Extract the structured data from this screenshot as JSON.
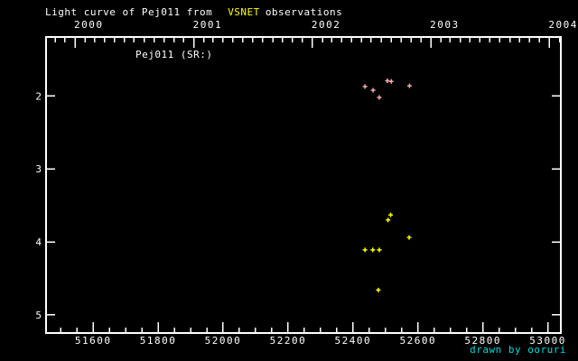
{
  "title": {
    "prefix": "Light curve of Pej011 from",
    "highlight": "VSNET",
    "suffix": "observations"
  },
  "star_label": "Pej011 (SR:)",
  "credit": "drawn by ooruri",
  "colors": {
    "background": "#000000",
    "frame": "#ffffff",
    "text": "#ffffff",
    "title_highlight": "#ffff00",
    "credit": "#00dddd",
    "series_pink": "#ffa8a8",
    "series_yellow": "#ffff00"
  },
  "chart_data": {
    "type": "scatter",
    "title": "Light curve of Pej011 from VSNET observations",
    "annotation": "Pej011 (SR:)",
    "grid": false,
    "legend": "none",
    "x_axis": {
      "xlim_mjd": [
        51455,
        53040
      ],
      "bottom_major_ticks": [
        51600,
        51800,
        52000,
        52200,
        52400,
        52600,
        52800,
        53000
      ],
      "bottom_minor_step": 50,
      "top_year_labels": [
        2000,
        2001,
        2002,
        2003,
        2004
      ],
      "top_minor_ticks": "monthly"
    },
    "y_axis": {
      "ticks": [
        2,
        3,
        4,
        5
      ],
      "ylim_mag": [
        1.19,
        5.25
      ],
      "direction": "magnitude-increases-downward"
    },
    "series": [
      {
        "name": "pink-points",
        "color": "#ffa8a8",
        "marker": "plus",
        "points": [
          [
            52437,
            1.87
          ],
          [
            52462,
            1.92
          ],
          [
            52481,
            2.02
          ],
          [
            52506,
            1.79
          ],
          [
            52518,
            1.8
          ],
          [
            52574,
            1.86
          ]
        ]
      },
      {
        "name": "yellow-points",
        "color": "#ffff00",
        "marker": "plus",
        "points": [
          [
            52437,
            4.11
          ],
          [
            52461,
            4.11
          ],
          [
            52478,
            4.66
          ],
          [
            52481,
            4.11
          ],
          [
            52508,
            3.7
          ],
          [
            52516,
            3.63
          ],
          [
            52573,
            3.94
          ]
        ]
      }
    ]
  }
}
